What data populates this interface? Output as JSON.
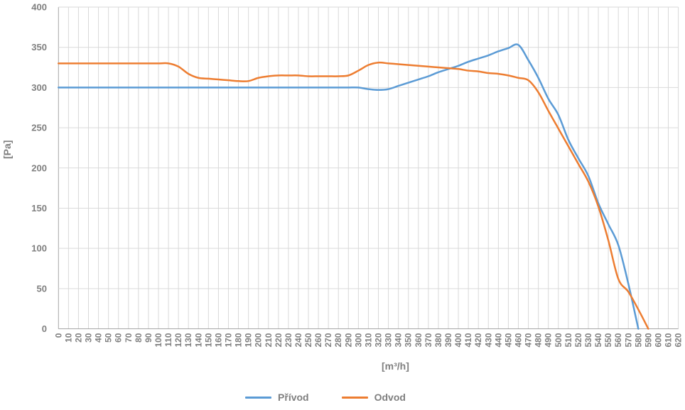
{
  "chart_data": {
    "type": "line",
    "title": "",
    "xlabel": "[m³/h]",
    "ylabel": "[Pa]",
    "xlim": [
      0,
      620
    ],
    "ylim": [
      0,
      400
    ],
    "x_tick_step": 10,
    "y_tick_step": 50,
    "grid": true,
    "smoothed_lines": true,
    "legend_position": "bottom",
    "colors": {
      "gridline": "#D9D9D9",
      "axis": "#A6A6A6",
      "tick_label": "#7F7F7F"
    },
    "y_ticks": [
      0,
      50,
      100,
      150,
      200,
      250,
      300,
      350,
      400
    ],
    "x": [
      0,
      10,
      20,
      30,
      40,
      50,
      60,
      70,
      80,
      90,
      100,
      110,
      120,
      130,
      140,
      150,
      160,
      170,
      180,
      190,
      200,
      210,
      220,
      230,
      240,
      250,
      260,
      270,
      280,
      290,
      300,
      310,
      320,
      330,
      340,
      350,
      360,
      370,
      380,
      390,
      400,
      410,
      420,
      430,
      440,
      450,
      460,
      470,
      480,
      490,
      500,
      510,
      520,
      530,
      540,
      550,
      560,
      570,
      580,
      590,
      600,
      610,
      620
    ],
    "series": [
      {
        "name": "Přívod",
        "color": "#5B9BD5",
        "values": [
          300,
          300,
          300,
          300,
          300,
          300,
          300,
          300,
          300,
          300,
          300,
          300,
          300,
          300,
          300,
          300,
          300,
          300,
          300,
          300,
          300,
          300,
          300,
          300,
          300,
          300,
          300,
          300,
          300,
          300,
          300,
          298,
          297,
          298,
          302,
          306,
          310,
          314,
          319,
          323,
          327,
          332,
          336,
          340,
          345,
          349,
          353,
          334,
          312,
          286,
          266,
          235,
          212,
          190,
          156,
          130,
          104,
          56,
          0,
          null,
          null,
          null,
          null
        ]
      },
      {
        "name": "Odvod",
        "color": "#ED7D31",
        "values": [
          330,
          330,
          330,
          330,
          330,
          330,
          330,
          330,
          330,
          330,
          330,
          330,
          326,
          317,
          312,
          311,
          310,
          309,
          308,
          308,
          312,
          314,
          315,
          315,
          315,
          314,
          314,
          314,
          314,
          315,
          321,
          328,
          331,
          330,
          329,
          328,
          327,
          326,
          325,
          324,
          323,
          321,
          320,
          318,
          317,
          315,
          312,
          309,
          294,
          271,
          249,
          227,
          205,
          183,
          152,
          110,
          62,
          46,
          24,
          0,
          null,
          null,
          null
        ]
      }
    ]
  }
}
